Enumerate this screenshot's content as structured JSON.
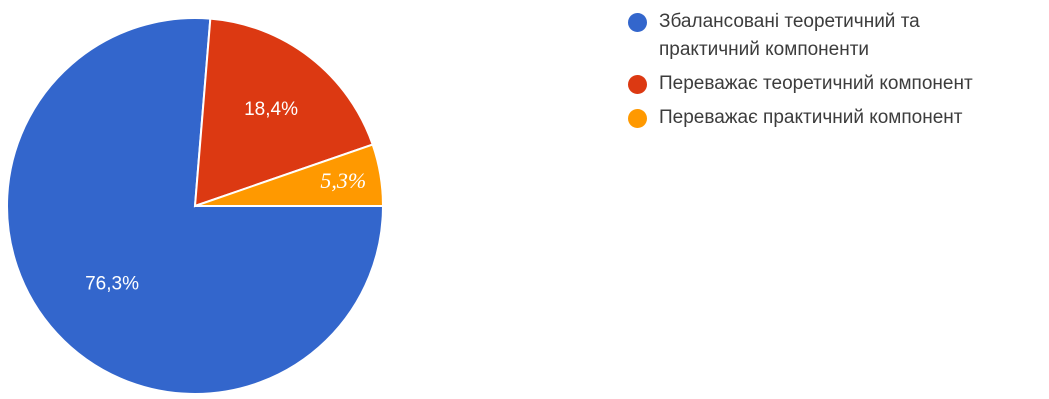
{
  "chart_data": {
    "type": "pie",
    "slices": [
      {
        "label": "Збалансовані теоретичний та практичний компоненти",
        "value": 76.3,
        "display": "76,3%",
        "color": "#3366cc"
      },
      {
        "label": "Переважає теоретичний компонент",
        "value": 18.4,
        "display": "18,4%",
        "color": "#dc3912"
      },
      {
        "label": "Переважає практичний компонент",
        "value": 5.3,
        "display": "5,3%",
        "color": "#ff9900"
      }
    ],
    "legend_position": "right"
  }
}
